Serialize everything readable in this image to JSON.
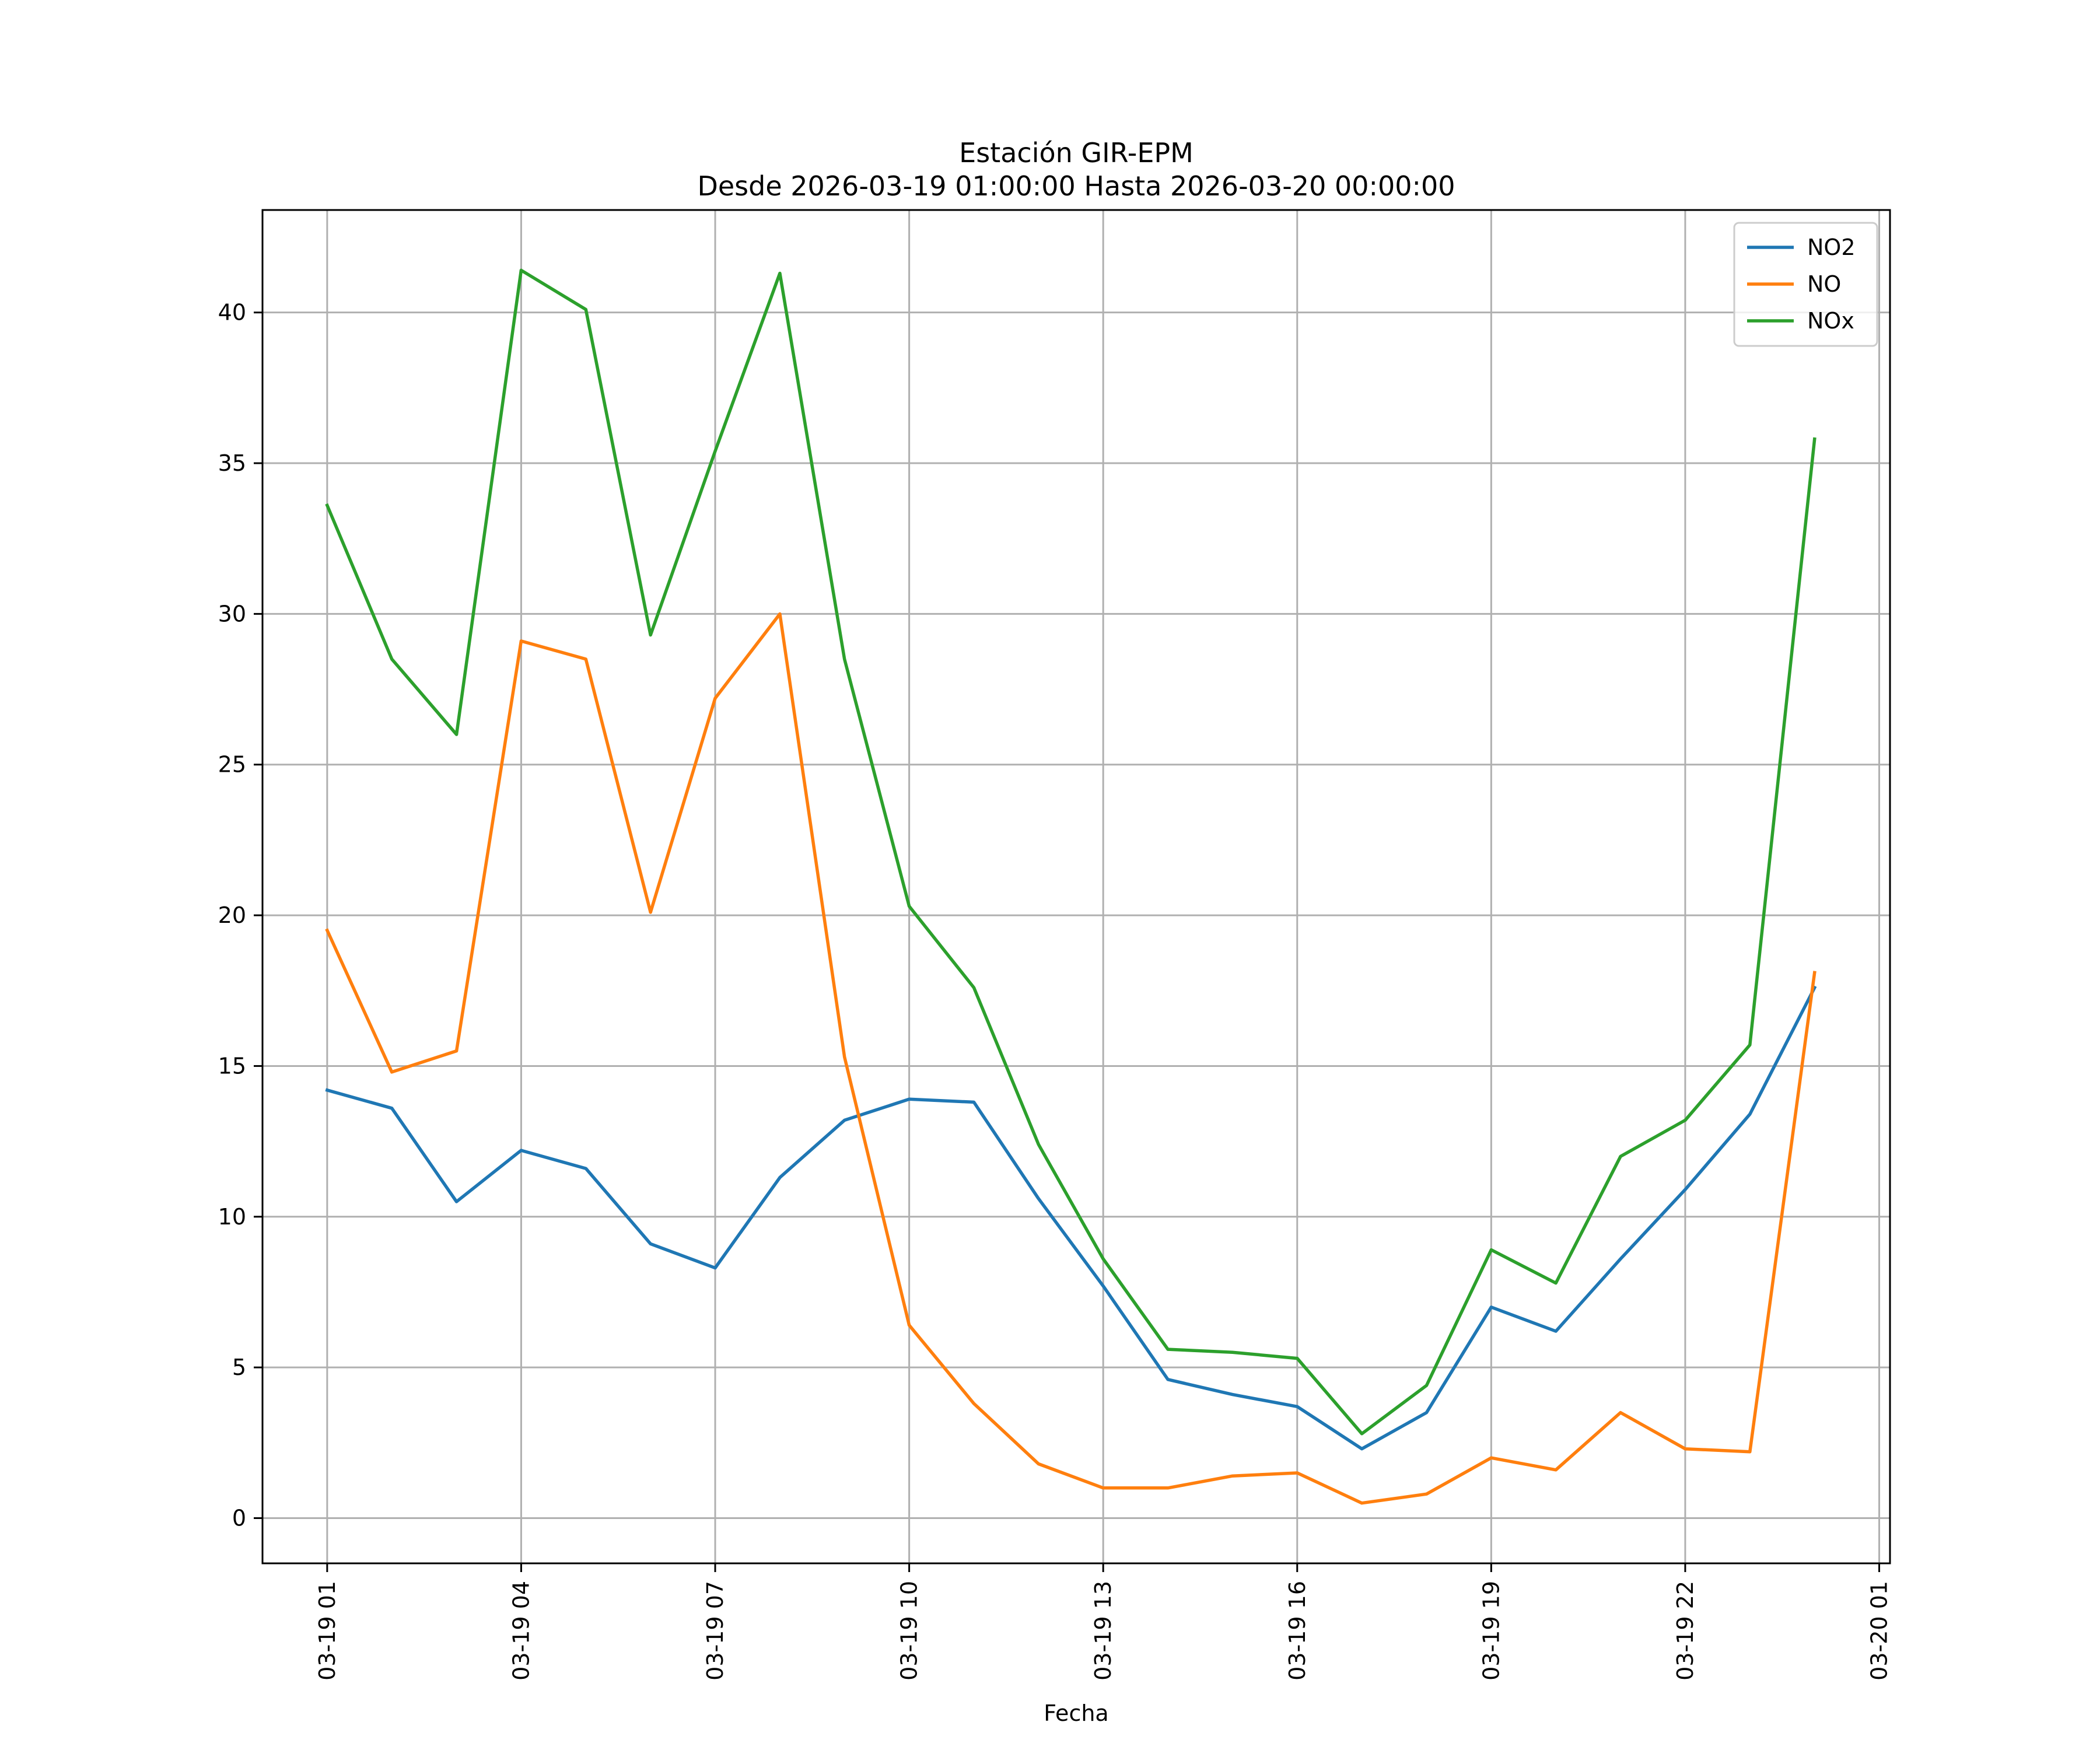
{
  "chart_data": {
    "type": "line",
    "title": "Estación GIR-EPM",
    "subtitle": "Desde 2026-03-19 01:00:00 Hasta 2026-03-20 00:00:00",
    "xlabel": "Fecha",
    "ylabel": "",
    "x": [
      "2026-03-19 01:00",
      "2026-03-19 02:00",
      "2026-03-19 03:00",
      "2026-03-19 04:00",
      "2026-03-19 05:00",
      "2026-03-19 06:00",
      "2026-03-19 07:00",
      "2026-03-19 08:00",
      "2026-03-19 09:00",
      "2026-03-19 10:00",
      "2026-03-19 11:00",
      "2026-03-19 12:00",
      "2026-03-19 13:00",
      "2026-03-19 14:00",
      "2026-03-19 15:00",
      "2026-03-19 16:00",
      "2026-03-19 17:00",
      "2026-03-19 18:00",
      "2026-03-19 19:00",
      "2026-03-19 20:00",
      "2026-03-19 21:00",
      "2026-03-19 22:00",
      "2026-03-19 23:00",
      "2026-03-20 00:00"
    ],
    "xlim": [
      "2026-03-19 00:00",
      "2026-03-20 01:10"
    ],
    "xticks": [
      "03-19 01",
      "03-19 04",
      "03-19 07",
      "03-19 10",
      "03-19 13",
      "03-19 16",
      "03-19 19",
      "03-19 22",
      "03-20 01"
    ],
    "ylim": [
      -1.5,
      43.4
    ],
    "yticks": [
      "0",
      "5",
      "10",
      "15",
      "20",
      "25",
      "30",
      "35",
      "40"
    ],
    "grid": true,
    "legend_position": "top-right",
    "series": [
      {
        "name": "NO2",
        "color": "#1f77b4",
        "values": [
          14.2,
          13.6,
          10.5,
          12.2,
          11.6,
          9.1,
          8.3,
          11.3,
          13.2,
          13.9,
          13.8,
          10.6,
          7.7,
          4.6,
          4.1,
          3.7,
          2.3,
          3.5,
          7.0,
          6.2,
          8.6,
          10.9,
          13.4,
          17.6
        ]
      },
      {
        "name": "NO",
        "color": "#ff7f0e",
        "values": [
          19.5,
          14.8,
          15.5,
          29.1,
          28.5,
          20.1,
          27.2,
          30.0,
          15.3,
          6.4,
          3.8,
          1.8,
          1.0,
          1.0,
          1.4,
          1.5,
          0.5,
          0.8,
          2.0,
          1.6,
          3.5,
          2.3,
          2.2,
          18.1
        ]
      },
      {
        "name": "NOx",
        "color": "#2ca02c",
        "values": [
          33.6,
          28.5,
          26.0,
          41.4,
          40.1,
          29.3,
          35.4,
          41.3,
          28.5,
          20.3,
          17.6,
          12.4,
          8.6,
          5.6,
          5.5,
          5.3,
          2.8,
          4.4,
          8.9,
          7.8,
          12.0,
          13.2,
          15.7,
          35.8
        ]
      }
    ]
  }
}
